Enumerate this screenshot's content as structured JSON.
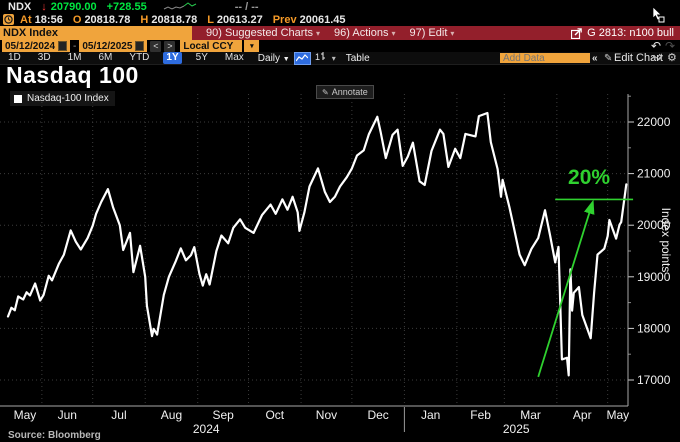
{
  "quote": {
    "ticker": "NDX",
    "direction_arrow": "↓",
    "last": "20790.00",
    "change": "+728.55",
    "range_placeholder": "-- / --",
    "at_label": "At",
    "at_time": "18:56",
    "open_label": "O",
    "open": "20818.78",
    "high_label": "H",
    "high": "20818.78",
    "low_label": "L",
    "low": "20613.27",
    "prev_label": "Prev",
    "prev": "20061.45"
  },
  "menubar": {
    "security": "NDX Index",
    "items": [
      "90) Suggested Charts",
      "96) Actions",
      "97) Edit"
    ],
    "chart_tag": "G 2813: n100 bull"
  },
  "toolbar": {
    "date_from": "05/12/2024",
    "date_separator": "-",
    "date_to": "05/12/2025",
    "prev_label": "<",
    "next_label": ">",
    "currency": "Local CCY",
    "periods": [
      "1D",
      "3D",
      "1M",
      "6M",
      "YTD",
      "1Y",
      "5Y",
      "Max"
    ],
    "active_period": "1Y",
    "frequency": "Daily",
    "table_label": "Table",
    "add_data_placeholder": "Add Data",
    "collapse_label": "«",
    "edit_chart_label": "Edit Chart"
  },
  "chart": {
    "title": "Nasdaq 100",
    "legend": "Nasdaq-100 Index",
    "annotate_label": "Annotate",
    "source": "Source: Bloomberg"
  },
  "chart_data": {
    "type": "line",
    "title": "Nasdaq 100",
    "series_name": "Nasdaq-100 Index",
    "ylabel": "Index points",
    "y_ticks": [
      17000,
      18000,
      19000,
      20000,
      21000,
      22000
    ],
    "ylim": [
      16497,
      22523
    ],
    "grid": "dotted",
    "line_color": "#ffffff",
    "month_boundaries_days": [
      0,
      20,
      50,
      81,
      112,
      142,
      173,
      203,
      234,
      265,
      293,
      324,
      354,
      366
    ],
    "x_months": [
      "May",
      "Jun",
      "Jul",
      "Aug",
      "Sep",
      "Oct",
      "Nov",
      "Dec",
      "Jan",
      "Feb",
      "Mar",
      "Apr",
      "May"
    ],
    "years": [
      {
        "label": "2024",
        "day_center": 117
      },
      {
        "label": "2025",
        "day_center": 300
      }
    ],
    "year_divider_day": 234,
    "points": [
      [
        0,
        18230
      ],
      [
        2,
        18400
      ],
      [
        4,
        18350
      ],
      [
        6,
        18620
      ],
      [
        9,
        18560
      ],
      [
        11,
        18700
      ],
      [
        13,
        18640
      ],
      [
        16,
        18870
      ],
      [
        19,
        18540
      ],
      [
        21,
        18650
      ],
      [
        24,
        19020
      ],
      [
        26,
        18930
      ],
      [
        30,
        19250
      ],
      [
        33,
        19430
      ],
      [
        37,
        19900
      ],
      [
        40,
        19680
      ],
      [
        43,
        19530
      ],
      [
        47,
        19750
      ],
      [
        50,
        19990
      ],
      [
        52,
        20220
      ],
      [
        55,
        20450
      ],
      [
        59,
        20700
      ],
      [
        62,
        20350
      ],
      [
        66,
        20000
      ],
      [
        68,
        19520
      ],
      [
        72,
        19850
      ],
      [
        74,
        19090
      ],
      [
        78,
        19600
      ],
      [
        81,
        19000
      ],
      [
        82,
        18440
      ],
      [
        85,
        17850
      ],
      [
        86,
        17990
      ],
      [
        88,
        17880
      ],
      [
        92,
        18650
      ],
      [
        95,
        19000
      ],
      [
        99,
        19300
      ],
      [
        102,
        19550
      ],
      [
        105,
        19320
      ],
      [
        108,
        19420
      ],
      [
        110,
        19575
      ],
      [
        113,
        19060
      ],
      [
        115,
        18830
      ],
      [
        117,
        19050
      ],
      [
        119,
        18850
      ],
      [
        123,
        19500
      ],
      [
        126,
        19800
      ],
      [
        130,
        19650
      ],
      [
        133,
        19950
      ],
      [
        137,
        20115
      ],
      [
        140,
        19950
      ],
      [
        145,
        19850
      ],
      [
        150,
        20200
      ],
      [
        155,
        20400
      ],
      [
        158,
        20220
      ],
      [
        162,
        20500
      ],
      [
        165,
        20300
      ],
      [
        168,
        20550
      ],
      [
        171,
        20250
      ],
      [
        172,
        19890
      ],
      [
        175,
        20250
      ],
      [
        178,
        20750
      ],
      [
        183,
        21100
      ],
      [
        187,
        20650
      ],
      [
        190,
        20450
      ],
      [
        193,
        20550
      ],
      [
        196,
        20750
      ],
      [
        200,
        20930
      ],
      [
        203,
        21100
      ],
      [
        206,
        21350
      ],
      [
        210,
        21450
      ],
      [
        213,
        21760
      ],
      [
        218,
        22100
      ],
      [
        220,
        21800
      ],
      [
        223,
        21300
      ],
      [
        227,
        21750
      ],
      [
        230,
        21850
      ],
      [
        233,
        21150
      ],
      [
        236,
        21330
      ],
      [
        239,
        21600
      ],
      [
        243,
        20850
      ],
      [
        246,
        20780
      ],
      [
        250,
        21440
      ],
      [
        255,
        21850
      ],
      [
        257,
        21770
      ],
      [
        260,
        21130
      ],
      [
        264,
        21480
      ],
      [
        267,
        21300
      ],
      [
        270,
        21770
      ],
      [
        276,
        21720
      ],
      [
        278,
        22115
      ],
      [
        283,
        22175
      ],
      [
        285,
        21610
      ],
      [
        289,
        21090
      ],
      [
        291,
        20550
      ],
      [
        292,
        20880
      ],
      [
        296,
        20350
      ],
      [
        298,
        20050
      ],
      [
        302,
        19430
      ],
      [
        305,
        19225
      ],
      [
        309,
        19540
      ],
      [
        313,
        19750
      ],
      [
        317,
        20290
      ],
      [
        320,
        19800
      ],
      [
        323,
        19280
      ],
      [
        325,
        19580
      ],
      [
        326,
        18520
      ],
      [
        327,
        17400
      ],
      [
        330,
        17430
      ],
      [
        331,
        17090
      ],
      [
        332,
        19145
      ],
      [
        333,
        18345
      ],
      [
        334,
        18690
      ],
      [
        337,
        18800
      ],
      [
        339,
        18260
      ],
      [
        344,
        17810
      ],
      [
        346,
        18690
      ],
      [
        348,
        19430
      ],
      [
        352,
        19545
      ],
      [
        354,
        19790
      ],
      [
        355,
        20100
      ],
      [
        359,
        19740
      ],
      [
        361,
        20010
      ],
      [
        362,
        20061
      ],
      [
        365,
        20790
      ]
    ],
    "annotation": {
      "label": "20%",
      "color": "#2fd12f",
      "hline_value": 20500,
      "hline_day_from": 323,
      "hline_day_to": 369,
      "arrow_from": [
        313,
        17060
      ],
      "arrow_to": [
        345,
        20430
      ],
      "label_day": 343,
      "label_value": 20930
    }
  }
}
